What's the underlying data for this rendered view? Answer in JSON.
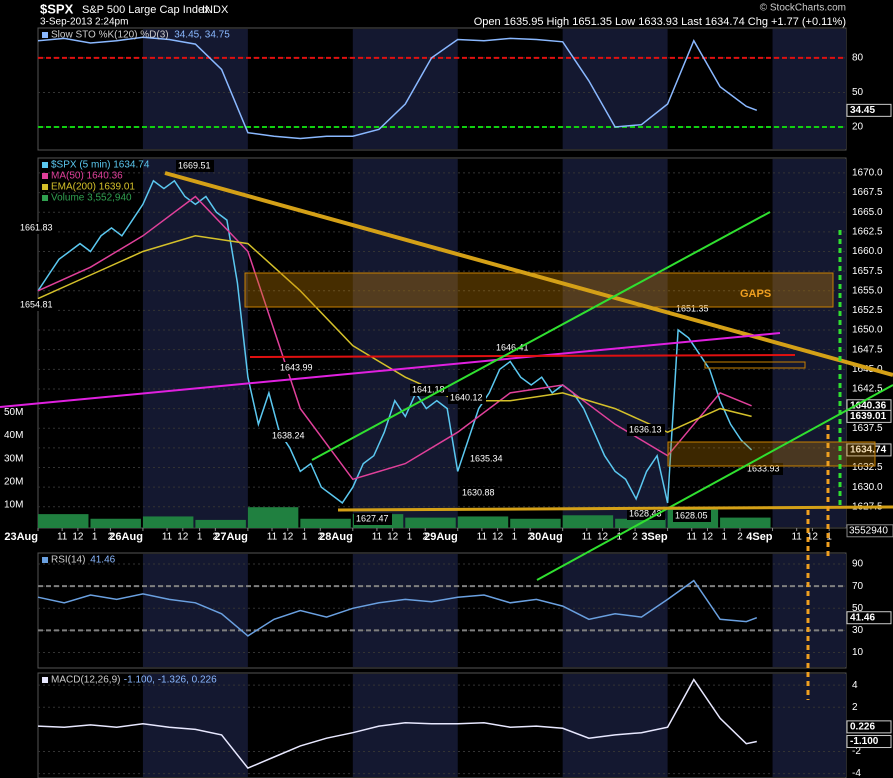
{
  "header": {
    "symbol": "$SPX",
    "name": "S&P 500 Large Cap Index",
    "exchange": "INDX",
    "date": "3-Sep-2013 2:24pm",
    "ohlc": "Open 1635.95  High 1651.35  Low 1633.93  Last 1634.74  Chg +1.77 (+0.11%)",
    "copyright": "© StockCharts.com",
    "gaps": "GAPS"
  },
  "chart_data": [
    {
      "type": "line",
      "legend": [
        "Slow STO %K(120) %D(3)"
      ],
      "readout": "34.45, 34.75",
      "ylim": [
        0,
        106
      ],
      "yticks": [
        20,
        50,
        80
      ],
      "levels": [
        {
          "value": 80,
          "color": "#e01010"
        },
        {
          "value": 20,
          "color": "#10d010"
        }
      ],
      "series": [
        {
          "color": "#8ab8ff",
          "x": [
            0,
            0.25,
            0.5,
            0.75,
            1,
            1.25,
            1.5,
            1.75,
            2,
            2.25,
            2.5,
            2.75,
            3,
            3.25,
            3.5,
            3.75,
            4,
            4.25,
            4.5,
            4.75,
            5,
            5.25,
            5.5,
            5.75,
            6,
            6.25,
            6.5,
            6.75,
            6.85
          ],
          "values": [
            95,
            97,
            93,
            95,
            98,
            96,
            92,
            70,
            15,
            12,
            10,
            12,
            12,
            18,
            40,
            80,
            96,
            95,
            97,
            96,
            94,
            60,
            20,
            22,
            40,
            95,
            55,
            38,
            34.45
          ]
        }
      ],
      "badges": [
        34.45
      ]
    },
    {
      "type": "line",
      "legend": [
        "$SPX (5 min) 1634.74",
        "MA(50) 1640.36",
        "EMA(200) 1639.01",
        "Volume 3,552,940"
      ],
      "legend_colors": [
        "#5bc8f0",
        "#e0409a",
        "#d4c02a",
        "#30a050"
      ],
      "ylim": [
        1624.8,
        1671.9
      ],
      "yticks": [
        {
          "value": 1627.5,
          "label": "1627.5"
        },
        {
          "value": 1630,
          "label": "1630.0"
        },
        {
          "value": 1632.5,
          "label": "1632.5"
        },
        {
          "value": 1635,
          "label": "1635.0"
        },
        {
          "value": 1637.5,
          "label": "1637.5"
        },
        {
          "value": 1640,
          "label": "1640.0"
        },
        {
          "value": 1642.5,
          "label": "1642.5"
        },
        {
          "value": 1645,
          "label": "1645.0"
        },
        {
          "value": 1647.5,
          "label": "1647.5"
        },
        {
          "value": 1650,
          "label": "1650.0"
        },
        {
          "value": 1652.5,
          "label": "1652.5"
        },
        {
          "value": 1655,
          "label": "1655.0"
        },
        {
          "value": 1657.5,
          "label": "1657.5"
        },
        {
          "value": 1660,
          "label": "1660.0"
        },
        {
          "value": 1662.5,
          "label": "1662.5"
        },
        {
          "value": 1665,
          "label": "1665.0"
        },
        {
          "value": 1667.5,
          "label": "1667.5"
        },
        {
          "value": 1670,
          "label": "1670.0"
        }
      ],
      "xlim": [
        0,
        7.7
      ],
      "xticks": [
        {
          "value": 0,
          "label": "23Aug"
        },
        {
          "value": 0.23,
          "label": "11"
        },
        {
          "value": 0.38,
          "label": "12"
        },
        {
          "value": 0.54,
          "label": "1"
        },
        {
          "value": 0.69,
          "label": "2"
        },
        {
          "value": 1,
          "label": "26Aug"
        },
        {
          "value": 1.23,
          "label": "11"
        },
        {
          "value": 1.38,
          "label": "12"
        },
        {
          "value": 1.54,
          "label": "1"
        },
        {
          "value": 1.69,
          "label": "2"
        },
        {
          "value": 2,
          "label": "27Aug"
        },
        {
          "value": 2.23,
          "label": "11"
        },
        {
          "value": 2.38,
          "label": "12"
        },
        {
          "value": 2.54,
          "label": "1"
        },
        {
          "value": 2.69,
          "label": "2"
        },
        {
          "value": 3,
          "label": "28Aug"
        },
        {
          "value": 3.23,
          "label": "11"
        },
        {
          "value": 3.38,
          "label": "12"
        },
        {
          "value": 3.54,
          "label": "1"
        },
        {
          "value": 3.69,
          "label": "2"
        },
        {
          "value": 4,
          "label": "29Aug"
        },
        {
          "value": 4.23,
          "label": "11"
        },
        {
          "value": 4.38,
          "label": "12"
        },
        {
          "value": 4.54,
          "label": "1"
        },
        {
          "value": 4.69,
          "label": "2"
        },
        {
          "value": 5,
          "label": "30Aug"
        },
        {
          "value": 5.23,
          "label": "11"
        },
        {
          "value": 5.38,
          "label": "12"
        },
        {
          "value": 5.54,
          "label": "1"
        },
        {
          "value": 5.69,
          "label": "2"
        },
        {
          "value": 6,
          "label": "3Sep"
        },
        {
          "value": 6.23,
          "label": "11"
        },
        {
          "value": 6.38,
          "label": "12"
        },
        {
          "value": 6.54,
          "label": "1"
        },
        {
          "value": 6.69,
          "label": "2"
        },
        {
          "value": 7,
          "label": "4Sep"
        },
        {
          "value": 7.23,
          "label": "11"
        },
        {
          "value": 7.38,
          "label": "12"
        },
        {
          "value": 7.54,
          "label": "1"
        }
      ],
      "series": [
        {
          "color": "#5bc8f0",
          "x": [
            0,
            0.1,
            0.2,
            0.3,
            0.4,
            0.5,
            0.6,
            0.7,
            0.8,
            0.9,
            1,
            1.1,
            1.2,
            1.3,
            1.4,
            1.5,
            1.6,
            1.7,
            1.8,
            1.9,
            2,
            2.1,
            2.2,
            2.3,
            2.4,
            2.5,
            2.6,
            2.7,
            2.8,
            2.9,
            3,
            3.1,
            3.2,
            3.3,
            3.4,
            3.5,
            3.6,
            3.7,
            3.8,
            3.9,
            4,
            4.1,
            4.2,
            4.3,
            4.4,
            4.5,
            4.6,
            4.7,
            4.8,
            4.9,
            5,
            5.1,
            5.2,
            5.3,
            5.4,
            5.5,
            5.6,
            5.7,
            5.8,
            5.9,
            6,
            6.1,
            6.2,
            6.3,
            6.4,
            6.5,
            6.6,
            6.7,
            6.8
          ],
          "values": [
            1655,
            1657,
            1659,
            1660,
            1661,
            1660,
            1662,
            1663,
            1662,
            1664,
            1666,
            1669,
            1668,
            1669,
            1667,
            1666,
            1667,
            1665,
            1664,
            1656,
            1644,
            1638,
            1642,
            1637,
            1635,
            1632,
            1633,
            1630,
            1629,
            1628,
            1630,
            1633,
            1634,
            1637,
            1641,
            1639,
            1642,
            1640,
            1641,
            1640,
            1632,
            1636,
            1640,
            1642,
            1645,
            1646,
            1644,
            1643,
            1644,
            1642,
            1643,
            1642,
            1640,
            1637,
            1634,
            1632,
            1631,
            1628.5,
            1632,
            1634,
            1628,
            1650,
            1649,
            1647,
            1645,
            1641,
            1638,
            1636,
            1634.74
          ]
        },
        {
          "color": "#e0409a",
          "x": [
            0,
            0.5,
            1,
            1.5,
            2,
            2.5,
            3,
            3.5,
            4,
            4.5,
            5,
            5.5,
            6,
            6.5,
            6.8
          ],
          "values": [
            1655,
            1658,
            1662,
            1667,
            1660,
            1640,
            1631,
            1633,
            1637,
            1642,
            1643,
            1638,
            1634,
            1642,
            1640.36
          ]
        },
        {
          "color": "#d4c02a",
          "x": [
            0,
            0.5,
            1,
            1.5,
            2,
            2.5,
            3,
            3.5,
            4,
            4.5,
            5,
            5.5,
            6,
            6.5,
            6.8
          ],
          "values": [
            1654,
            1657,
            1660,
            1662,
            1661,
            1655,
            1648,
            1644,
            1641,
            1641,
            1642,
            1640,
            1637,
            1640,
            1639.01
          ]
        }
      ],
      "volume": {
        "color": "#208040",
        "y2lim": [
          0,
          160000000
        ],
        "y2ticks": [
          {
            "value": 10000000,
            "label": "10M"
          },
          {
            "value": 20000000,
            "label": "20M"
          },
          {
            "value": 30000000,
            "label": "30M"
          },
          {
            "value": 40000000,
            "label": "40M"
          },
          {
            "value": 50000000,
            "label": "50M"
          }
        ],
        "x": [
          0,
          0.5,
          1,
          1.5,
          2,
          2.5,
          3,
          3.5,
          4,
          4.5,
          5,
          5.5,
          6,
          6.5
        ],
        "values": [
          6000000,
          4000000,
          5000000,
          3500000,
          9000000,
          4000000,
          6000000,
          4500000,
          5000000,
          4000000,
          5500000,
          4000000,
          8000000,
          4500000
        ],
        "badge": 3552940
      },
      "annotations": [
        1661.83,
        1654.81,
        1669.51,
        1643.99,
        1638.24,
        1641.18,
        1640.12,
        1635.34,
        1630.88,
        1627.47,
        1646.41,
        1636.13,
        1628.43,
        1628.05,
        1651.35,
        1633.93
      ],
      "badges": [
        1640.36,
        1639.01,
        1634.74
      ]
    },
    {
      "type": "line",
      "legend": [
        "RSI(14)"
      ],
      "readout": "41.46",
      "ylim": [
        -4,
        100
      ],
      "yticks": [
        10,
        30,
        50,
        70,
        90
      ],
      "levels": [
        {
          "value": 70,
          "color": "#808080"
        },
        {
          "value": 30,
          "color": "#808080"
        }
      ],
      "series": [
        {
          "color": "#6aa0e0",
          "x": [
            0,
            0.25,
            0.5,
            0.75,
            1,
            1.25,
            1.5,
            1.75,
            2,
            2.25,
            2.5,
            2.75,
            3,
            3.25,
            3.5,
            3.75,
            4,
            4.25,
            4.5,
            4.75,
            5,
            5.25,
            5.5,
            5.75,
            6,
            6.25,
            6.5,
            6.75,
            6.85
          ],
          "values": [
            60,
            55,
            62,
            58,
            63,
            58,
            55,
            45,
            25,
            40,
            48,
            42,
            50,
            55,
            58,
            56,
            60,
            62,
            55,
            58,
            52,
            40,
            45,
            42,
            58,
            75,
            40,
            38,
            41.46
          ]
        }
      ],
      "badges": [
        41.46
      ]
    },
    {
      "type": "line",
      "legend": [
        "MACD(12,26,9)"
      ],
      "readout": "-1.100, -1.326, 0.226",
      "ylim": [
        -4.4,
        5.1
      ],
      "yticks": [
        -4,
        -2,
        2,
        4
      ],
      "levels": [],
      "series": [
        {
          "color": "#e8e8ff",
          "x": [
            0,
            0.25,
            0.5,
            0.75,
            1,
            1.25,
            1.5,
            1.75,
            2,
            2.25,
            2.5,
            2.75,
            3,
            3.25,
            3.5,
            3.75,
            4,
            4.25,
            4.5,
            4.75,
            5,
            5.25,
            5.5,
            5.75,
            6,
            6.25,
            6.5,
            6.75,
            6.85
          ],
          "values": [
            0.3,
            0.2,
            0.4,
            0.2,
            0.5,
            0.2,
            0,
            -0.5,
            -3.5,
            -2.5,
            -1.5,
            -0.8,
            -0.3,
            0.3,
            0.6,
            0.5,
            0.5,
            0.6,
            0.2,
            0.3,
            0.1,
            -0.8,
            -0.5,
            -0.3,
            0.2,
            4.5,
            1,
            -1.3,
            -1.1
          ]
        }
      ],
      "badges": [
        {
          "value": 0.226,
          "label": "0.226"
        },
        {
          "value": -1.1,
          "label": "-1.100"
        }
      ]
    }
  ]
}
